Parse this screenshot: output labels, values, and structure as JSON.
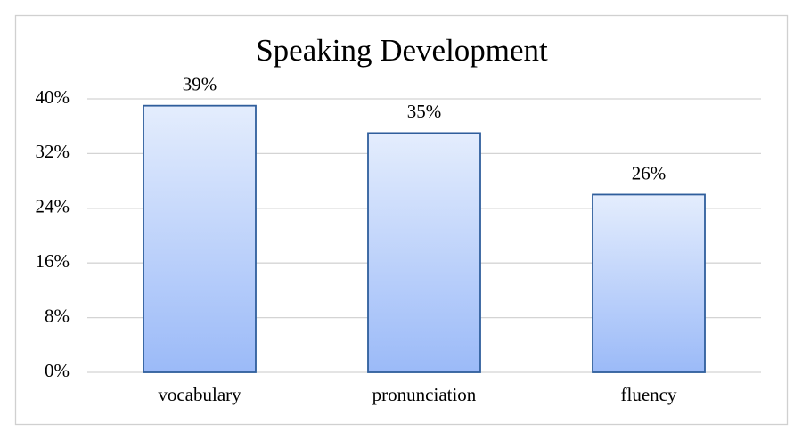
{
  "chart_data": {
    "type": "bar",
    "title": "Speaking Development",
    "categories": [
      "vocabulary",
      "pronunciation",
      "fluency"
    ],
    "values": [
      39,
      35,
      26
    ],
    "value_labels": [
      "39%",
      "35%",
      "26%"
    ],
    "color": "#2f5e9c",
    "ylim": [
      0,
      40
    ],
    "yticks": [
      {
        "value": 0,
        "label": "0%"
      },
      {
        "value": 8,
        "label": "8%"
      },
      {
        "value": 16,
        "label": "16%"
      },
      {
        "value": 24,
        "label": "24%"
      },
      {
        "value": 32,
        "label": "32%"
      },
      {
        "value": 40,
        "label": "40%"
      }
    ],
    "grid": true
  }
}
